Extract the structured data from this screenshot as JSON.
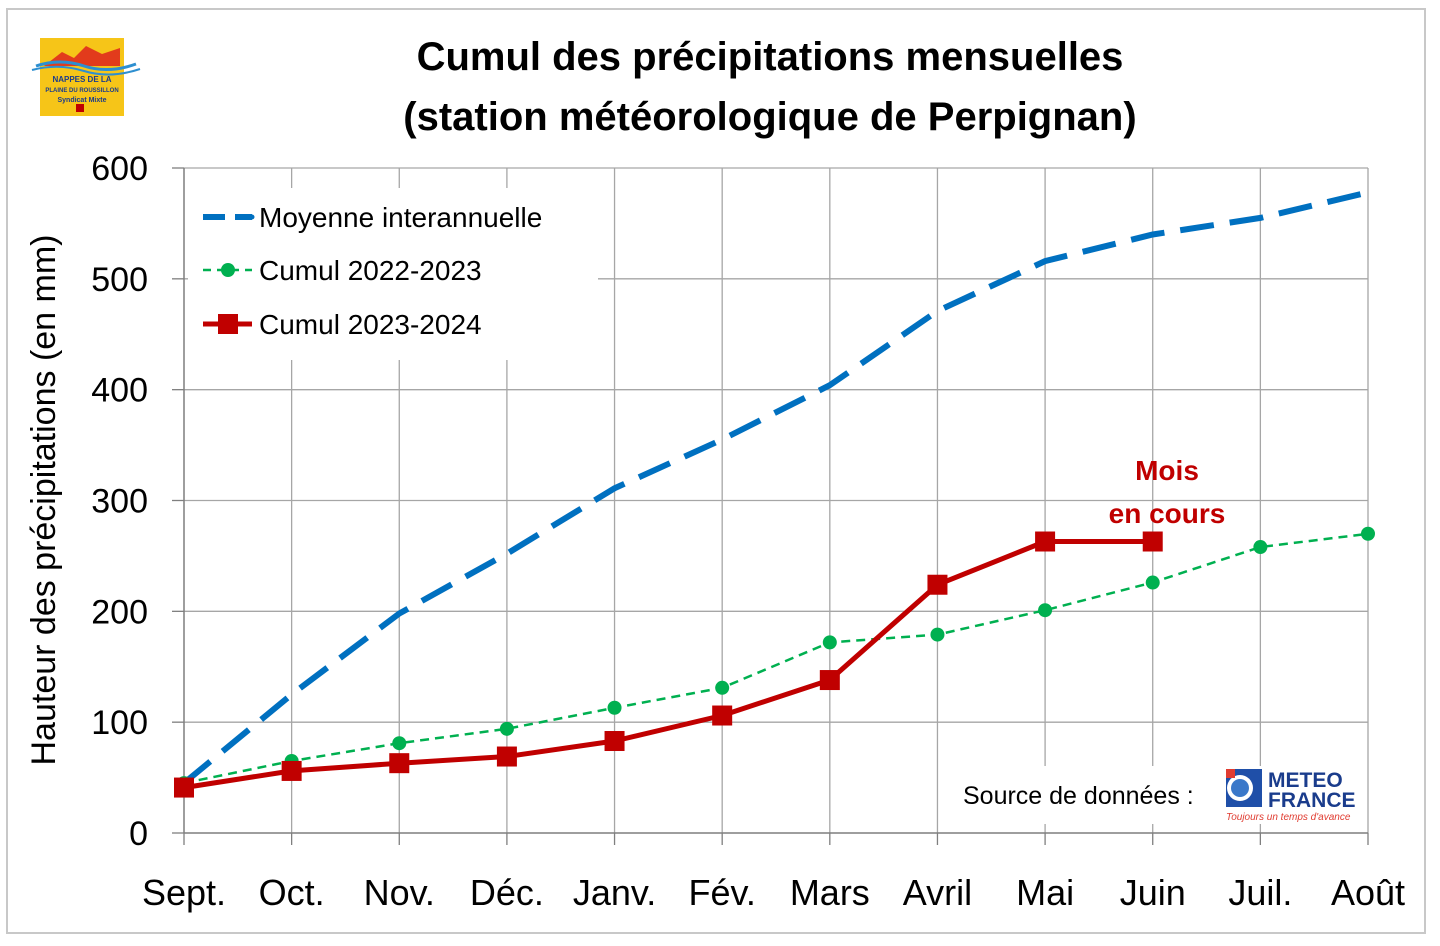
{
  "chart_data": {
    "type": "line",
    "title_lines": [
      "Cumul des précipitations mensuelles",
      "(station météorologique de Perpignan)"
    ],
    "ylabel": "Hauteur des précipitations (en mm)",
    "xlabel": "",
    "categories": [
      "Sept.",
      "Oct.",
      "Nov.",
      "Déc.",
      "Janv.",
      "Fév.",
      "Mars",
      "Avril",
      "Mai",
      "Juin",
      "Juil.",
      "Août"
    ],
    "ylim": [
      0,
      600
    ],
    "yticks": [
      0,
      100,
      200,
      300,
      400,
      500,
      600
    ],
    "grid": true,
    "legend_position": "top-left",
    "series": [
      {
        "name": "Moyenne interannuelle",
        "style": "dashed",
        "color": "#0070c0",
        "values": [
          45,
          125,
          198,
          252,
          311,
          355,
          404,
          471,
          516,
          540,
          555,
          578
        ]
      },
      {
        "name": "Cumul 2022-2023",
        "style": "dotted-circle",
        "color": "#00b050",
        "values": [
          45,
          65,
          81,
          94,
          113,
          131,
          172,
          179,
          201,
          226,
          258,
          270
        ]
      },
      {
        "name": "Cumul 2023-2024",
        "style": "solid-square",
        "color": "#c00000",
        "values": [
          41,
          56,
          63,
          69,
          83,
          106,
          138,
          224,
          263,
          263,
          null,
          null
        ]
      }
    ],
    "annotation": {
      "lines": [
        "Mois",
        "en cours"
      ],
      "color": "#c00000"
    }
  },
  "source": {
    "label": "Source de données :",
    "logo_line1": "METEO",
    "logo_line2": "FRANCE",
    "logo_tagline": "Toujours un temps d'avance"
  },
  "brand_logo": {
    "line1": "NAPPES DE LA",
    "line2": "PLAINE DU ROUSSILLON",
    "line3": "Syndicat Mixte"
  }
}
